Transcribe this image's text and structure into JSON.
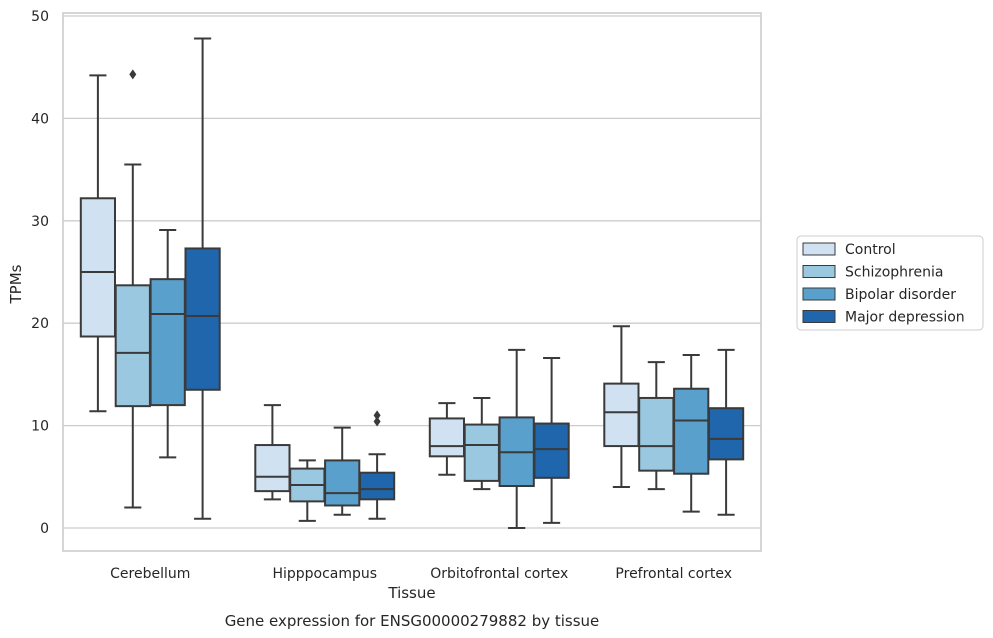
{
  "chart_data": {
    "type": "boxplot",
    "title": "",
    "caption": "Gene expression for ENSG00000279882 by tissue",
    "xlabel": "Tissue",
    "ylabel": "TPMs",
    "ylim": [
      -2.3,
      50.3
    ],
    "yticks": [
      0,
      10,
      20,
      30,
      40,
      50
    ],
    "grid": "horizontal",
    "legend_position": "right",
    "categories": [
      "Cerebellum",
      "Hipppocampus",
      "Orbitofrontal cortex",
      "Prefrontal cortex"
    ],
    "series": [
      {
        "name": "Control",
        "color": "#d0e1f2",
        "boxes": [
          {
            "whislo": 11.4,
            "q1": 18.7,
            "med": 25.0,
            "q3": 32.2,
            "whishi": 44.2,
            "fliers": []
          },
          {
            "whislo": 2.8,
            "q1": 3.6,
            "med": 5.0,
            "q3": 8.1,
            "whishi": 12.0,
            "fliers": []
          },
          {
            "whislo": 5.2,
            "q1": 7.0,
            "med": 8.0,
            "q3": 10.7,
            "whishi": 12.2,
            "fliers": []
          },
          {
            "whislo": 4.0,
            "q1": 8.0,
            "med": 11.3,
            "q3": 14.1,
            "whishi": 19.7,
            "fliers": []
          }
        ]
      },
      {
        "name": "Schizophrenia",
        "color": "#9ac8e0",
        "boxes": [
          {
            "whislo": 2.0,
            "q1": 11.9,
            "med": 17.1,
            "q3": 23.7,
            "whishi": 35.5,
            "fliers": [
              44.3
            ]
          },
          {
            "whislo": 0.7,
            "q1": 2.6,
            "med": 4.2,
            "q3": 5.8,
            "whishi": 6.6,
            "fliers": []
          },
          {
            "whislo": 3.8,
            "q1": 4.6,
            "med": 8.1,
            "q3": 10.1,
            "whishi": 12.7,
            "fliers": []
          },
          {
            "whislo": 3.8,
            "q1": 5.6,
            "med": 8.0,
            "q3": 12.7,
            "whishi": 16.2,
            "fliers": []
          }
        ]
      },
      {
        "name": "Bipolar disorder",
        "color": "#5aa0cd",
        "boxes": [
          {
            "whislo": 6.9,
            "q1": 12.0,
            "med": 20.9,
            "q3": 24.3,
            "whishi": 29.1,
            "fliers": []
          },
          {
            "whislo": 1.3,
            "q1": 2.2,
            "med": 3.4,
            "q3": 6.6,
            "whishi": 9.8,
            "fliers": []
          },
          {
            "whislo": 0.0,
            "q1": 4.1,
            "med": 7.4,
            "q3": 10.8,
            "whishi": 17.4,
            "fliers": []
          },
          {
            "whislo": 1.6,
            "q1": 5.3,
            "med": 10.5,
            "q3": 13.6,
            "whishi": 16.9,
            "fliers": []
          }
        ]
      },
      {
        "name": "Major depression",
        "color": "#2066ac",
        "boxes": [
          {
            "whislo": 0.9,
            "q1": 13.5,
            "med": 20.7,
            "q3": 27.3,
            "whishi": 47.8,
            "fliers": []
          },
          {
            "whislo": 0.9,
            "q1": 2.8,
            "med": 3.8,
            "q3": 5.4,
            "whishi": 7.2,
            "fliers": [
              10.4,
              11.0
            ]
          },
          {
            "whislo": 0.5,
            "q1": 4.9,
            "med": 7.7,
            "q3": 10.2,
            "whishi": 16.6,
            "fliers": []
          },
          {
            "whislo": 1.3,
            "q1": 6.7,
            "med": 8.7,
            "q3": 11.7,
            "whishi": 17.4,
            "fliers": []
          }
        ]
      }
    ]
  }
}
